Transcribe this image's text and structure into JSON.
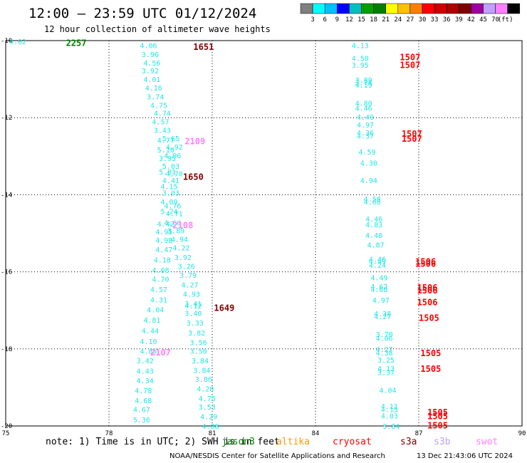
{
  "header": {
    "title": "12:00 — 23:59 UTC 01/12/2024",
    "subtitle": "12 hour collection of altimeter wave heights"
  },
  "legend": {
    "colors": [
      "#808080",
      "#00ffff",
      "#00bfff",
      "#0000ff",
      "#00c0c0",
      "#00a000",
      "#008000",
      "#ffff00",
      "#ffc000",
      "#ff8000",
      "#ff0000",
      "#d00000",
      "#b00000",
      "#800000",
      "#a000a0",
      "#c0a0ff",
      "#ff80ff",
      "#000000"
    ],
    "labels": [
      "3",
      "6",
      "9",
      "12",
      "15",
      "18",
      "21",
      "24",
      "27",
      "30",
      "33",
      "36",
      "39",
      "42",
      "45",
      "70",
      "(ft)"
    ],
    "unit": "(ft)"
  },
  "chart_data": {
    "type": "scatter",
    "title": "12:00 — 23:59 UTC 01/12/2024",
    "subtitle": "12 hour collection of altimeter wave heights",
    "xlim": [
      75,
      90
    ],
    "ylim": [
      -20,
      -10
    ],
    "x_ticks": [
      "75",
      "78",
      "81",
      "84",
      "87",
      "90"
    ],
    "y_ticks": [
      "-10",
      "-12",
      "-14",
      "-16",
      "-18",
      "-20"
    ],
    "grid": true,
    "wave_color": "#22e6e6",
    "wave_heights": [
      {
        "lon": 75.1,
        "lat": -10.02,
        "v": "4.02"
      },
      {
        "lon": 78.9,
        "lat": -10.12,
        "v": "4.06"
      },
      {
        "lon": 78.95,
        "lat": -10.35,
        "v": "3.96"
      },
      {
        "lon": 79.0,
        "lat": -10.57,
        "v": "4.56"
      },
      {
        "lon": 78.95,
        "lat": -10.78,
        "v": "3.92"
      },
      {
        "lon": 79.0,
        "lat": -11.0,
        "v": "4.01"
      },
      {
        "lon": 79.05,
        "lat": -11.22,
        "v": "4.16"
      },
      {
        "lon": 79.1,
        "lat": -11.45,
        "v": "3.74"
      },
      {
        "lon": 79.2,
        "lat": -11.67,
        "v": "4.75"
      },
      {
        "lon": 79.3,
        "lat": -11.88,
        "v": "4.74"
      },
      {
        "lon": 79.25,
        "lat": -12.1,
        "v": "4.57"
      },
      {
        "lon": 79.3,
        "lat": -12.32,
        "v": "3.43"
      },
      {
        "lon": 79.55,
        "lat": -12.53,
        "v": "5.65"
      },
      {
        "lon": 79.4,
        "lat": -12.58,
        "v": "4.77"
      },
      {
        "lon": 79.65,
        "lat": -12.75,
        "v": "4.92"
      },
      {
        "lon": 79.4,
        "lat": -12.83,
        "v": "5.10"
      },
      {
        "lon": 79.6,
        "lat": -12.98,
        "v": "4.96"
      },
      {
        "lon": 79.45,
        "lat": -13.05,
        "v": "3.95"
      },
      {
        "lon": 79.55,
        "lat": -13.25,
        "v": "5.03"
      },
      {
        "lon": 79.45,
        "lat": -13.4,
        "v": "5.01"
      },
      {
        "lon": 79.65,
        "lat": -13.45,
        "v": "4.70"
      },
      {
        "lon": 79.55,
        "lat": -13.62,
        "v": "4.41"
      },
      {
        "lon": 79.5,
        "lat": -13.78,
        "v": "4.15"
      },
      {
        "lon": 79.55,
        "lat": -13.95,
        "v": "3.03"
      },
      {
        "lon": 79.5,
        "lat": -14.18,
        "v": "4.09"
      },
      {
        "lon": 79.6,
        "lat": -14.28,
        "v": "4.76"
      },
      {
        "lon": 79.5,
        "lat": -14.43,
        "v": "5.24"
      },
      {
        "lon": 79.65,
        "lat": -14.48,
        "v": "4.71"
      },
      {
        "lon": 79.4,
        "lat": -14.75,
        "v": "4.42"
      },
      {
        "lon": 79.6,
        "lat": -14.72,
        "v": "4.60"
      },
      {
        "lon": 79.35,
        "lat": -14.95,
        "v": "4.95"
      },
      {
        "lon": 79.7,
        "lat": -14.93,
        "v": "3.89"
      },
      {
        "lon": 79.35,
        "lat": -15.18,
        "v": "4.98"
      },
      {
        "lon": 79.8,
        "lat": -15.15,
        "v": "4.94"
      },
      {
        "lon": 79.35,
        "lat": -15.42,
        "v": "4.47"
      },
      {
        "lon": 79.85,
        "lat": -15.37,
        "v": "4.22"
      },
      {
        "lon": 79.9,
        "lat": -15.62,
        "v": "3.92"
      },
      {
        "lon": 79.3,
        "lat": -15.68,
        "v": "4.18"
      },
      {
        "lon": 80.0,
        "lat": -15.85,
        "v": "3.26"
      },
      {
        "lon": 79.25,
        "lat": -15.95,
        "v": "4.08"
      },
      {
        "lon": 80.05,
        "lat": -16.08,
        "v": "3.79"
      },
      {
        "lon": 79.25,
        "lat": -16.18,
        "v": "4.70"
      },
      {
        "lon": 80.1,
        "lat": -16.33,
        "v": "4.27"
      },
      {
        "lon": 79.2,
        "lat": -16.45,
        "v": "4.57"
      },
      {
        "lon": 80.15,
        "lat": -16.57,
        "v": "4.93"
      },
      {
        "lon": 79.2,
        "lat": -16.72,
        "v": "4.31"
      },
      {
        "lon": 80.2,
        "lat": -16.82,
        "v": "3.41"
      },
      {
        "lon": 80.2,
        "lat": -16.88,
        "v": "4.12"
      },
      {
        "lon": 79.1,
        "lat": -16.98,
        "v": "4.04"
      },
      {
        "lon": 80.2,
        "lat": -17.07,
        "v": "3.40"
      },
      {
        "lon": 79.0,
        "lat": -17.25,
        "v": "4.81"
      },
      {
        "lon": 80.25,
        "lat": -17.32,
        "v": "3.33"
      },
      {
        "lon": 78.95,
        "lat": -17.52,
        "v": "4.44"
      },
      {
        "lon": 80.3,
        "lat": -17.58,
        "v": "3.82"
      },
      {
        "lon": 78.9,
        "lat": -17.8,
        "v": "4.10"
      },
      {
        "lon": 80.35,
        "lat": -17.83,
        "v": "3.56"
      },
      {
        "lon": 78.9,
        "lat": -18.05,
        "v": "4.85"
      },
      {
        "lon": 80.35,
        "lat": -18.05,
        "v": "3.50"
      },
      {
        "lon": 78.8,
        "lat": -18.3,
        "v": "3.42"
      },
      {
        "lon": 80.4,
        "lat": -18.3,
        "v": "3.84"
      },
      {
        "lon": 78.8,
        "lat": -18.57,
        "v": "4.43"
      },
      {
        "lon": 80.45,
        "lat": -18.55,
        "v": "3.84"
      },
      {
        "lon": 78.8,
        "lat": -18.82,
        "v": "4.34"
      },
      {
        "lon": 80.5,
        "lat": -18.78,
        "v": "3.86"
      },
      {
        "lon": 78.75,
        "lat": -19.08,
        "v": "4.78"
      },
      {
        "lon": 80.55,
        "lat": -19.03,
        "v": "4.20"
      },
      {
        "lon": 78.75,
        "lat": -19.33,
        "v": "4.68"
      },
      {
        "lon": 80.6,
        "lat": -19.28,
        "v": "4.75"
      },
      {
        "lon": 78.7,
        "lat": -19.57,
        "v": "4.67"
      },
      {
        "lon": 80.6,
        "lat": -19.5,
        "v": "3.53"
      },
      {
        "lon": 78.7,
        "lat": -19.83,
        "v": "5.36"
      },
      {
        "lon": 80.65,
        "lat": -19.75,
        "v": "4.29"
      },
      {
        "lon": 80.7,
        "lat": -20.0,
        "v": "4.08"
      },
      {
        "lon": 85.05,
        "lat": -10.12,
        "v": "4.13"
      },
      {
        "lon": 85.05,
        "lat": -10.45,
        "v": "4.50"
      },
      {
        "lon": 85.05,
        "lat": -10.63,
        "v": "3.95"
      },
      {
        "lon": 85.15,
        "lat": -11.02,
        "v": "3.80"
      },
      {
        "lon": 85.15,
        "lat": -11.08,
        "v": "3.74"
      },
      {
        "lon": 85.15,
        "lat": -11.15,
        "v": "4.19"
      },
      {
        "lon": 85.15,
        "lat": -11.62,
        "v": "4.80"
      },
      {
        "lon": 85.15,
        "lat": -11.75,
        "v": "4.46"
      },
      {
        "lon": 85.2,
        "lat": -11.98,
        "v": "4.49"
      },
      {
        "lon": 85.2,
        "lat": -12.18,
        "v": "4.97"
      },
      {
        "lon": 85.2,
        "lat": -12.38,
        "v": "4.36"
      },
      {
        "lon": 85.2,
        "lat": -12.47,
        "v": "4.37"
      },
      {
        "lon": 85.25,
        "lat": -12.88,
        "v": "4.59"
      },
      {
        "lon": 85.3,
        "lat": -13.17,
        "v": "4.30"
      },
      {
        "lon": 85.3,
        "lat": -13.62,
        "v": "4.94"
      },
      {
        "lon": 85.4,
        "lat": -14.1,
        "v": "4.58"
      },
      {
        "lon": 85.4,
        "lat": -14.18,
        "v": "4.68"
      },
      {
        "lon": 85.45,
        "lat": -14.62,
        "v": "4.46"
      },
      {
        "lon": 85.45,
        "lat": -14.77,
        "v": "4.83"
      },
      {
        "lon": 85.45,
        "lat": -15.05,
        "v": "4.40"
      },
      {
        "lon": 85.5,
        "lat": -15.3,
        "v": "4.87"
      },
      {
        "lon": 85.55,
        "lat": -15.67,
        "v": "4.46"
      },
      {
        "lon": 85.55,
        "lat": -15.72,
        "v": "4.49"
      },
      {
        "lon": 85.55,
        "lat": -15.82,
        "v": "4.24"
      },
      {
        "lon": 85.6,
        "lat": -16.15,
        "v": "4.49"
      },
      {
        "lon": 85.6,
        "lat": -16.38,
        "v": "4.62"
      },
      {
        "lon": 85.6,
        "lat": -16.45,
        "v": "4.68"
      },
      {
        "lon": 85.65,
        "lat": -16.73,
        "v": "4.97"
      },
      {
        "lon": 85.7,
        "lat": -17.08,
        "v": "4.38"
      },
      {
        "lon": 85.7,
        "lat": -17.15,
        "v": "4.27"
      },
      {
        "lon": 85.75,
        "lat": -17.62,
        "v": "3.70"
      },
      {
        "lon": 85.75,
        "lat": -17.72,
        "v": "4.06"
      },
      {
        "lon": 85.75,
        "lat": -18.0,
        "v": "4.27"
      },
      {
        "lon": 85.75,
        "lat": -18.1,
        "v": "4.38"
      },
      {
        "lon": 85.8,
        "lat": -18.28,
        "v": "3.25"
      },
      {
        "lon": 85.8,
        "lat": -18.5,
        "v": "4.13"
      },
      {
        "lon": 85.8,
        "lat": -18.6,
        "v": "3.37"
      },
      {
        "lon": 85.85,
        "lat": -19.07,
        "v": "4.04"
      },
      {
        "lon": 85.9,
        "lat": -19.48,
        "v": "4.11"
      },
      {
        "lon": 85.9,
        "lat": -19.57,
        "v": "4.15"
      },
      {
        "lon": 85.9,
        "lat": -19.73,
        "v": "4.03"
      },
      {
        "lon": 85.95,
        "lat": -20.0,
        "v": "3.84"
      }
    ],
    "time_labels": [
      {
        "lon": 76.75,
        "lat": -10.05,
        "text": "2257",
        "color": "#008000"
      },
      {
        "lon": 80.45,
        "lat": -10.15,
        "text": "1651",
        "color": "#800000"
      },
      {
        "lon": 80.2,
        "lat": -12.6,
        "text": "2109",
        "color": "#ff80ff"
      },
      {
        "lon": 80.15,
        "lat": -13.52,
        "text": "1650",
        "color": "#800000"
      },
      {
        "lon": 79.85,
        "lat": -14.78,
        "text": "2108",
        "color": "#ff80ff"
      },
      {
        "lon": 81.05,
        "lat": -16.92,
        "text": "1649",
        "color": "#800000"
      },
      {
        "lon": 79.2,
        "lat": -18.08,
        "text": "2107",
        "color": "#ff80ff"
      },
      {
        "lon": 86.45,
        "lat": -10.42,
        "text": "1507",
        "color": "#ff0000"
      },
      {
        "lon": 86.45,
        "lat": -10.62,
        "text": "1507",
        "color": "#ff0000"
      },
      {
        "lon": 86.5,
        "lat": -12.4,
        "text": "1507",
        "color": "#ff0000"
      },
      {
        "lon": 86.5,
        "lat": -12.53,
        "text": "1507",
        "color": "#ff0000"
      },
      {
        "lon": 86.9,
        "lat": -15.72,
        "text": "1506",
        "color": "#ff0000"
      },
      {
        "lon": 86.9,
        "lat": -15.78,
        "text": "1506",
        "color": "#ff0000"
      },
      {
        "lon": 86.95,
        "lat": -16.4,
        "text": "1506",
        "color": "#ff0000"
      },
      {
        "lon": 86.95,
        "lat": -16.47,
        "text": "1506",
        "color": "#ff0000"
      },
      {
        "lon": 86.95,
        "lat": -16.77,
        "text": "1506",
        "color": "#ff0000"
      },
      {
        "lon": 87.0,
        "lat": -17.18,
        "text": "1505",
        "color": "#ff0000"
      },
      {
        "lon": 87.05,
        "lat": -18.1,
        "text": "1505",
        "color": "#ff0000"
      },
      {
        "lon": 87.05,
        "lat": -18.5,
        "text": "1505",
        "color": "#ff0000"
      },
      {
        "lon": 87.25,
        "lat": -19.63,
        "text": "1505",
        "color": "#ff0000"
      },
      {
        "lon": 87.25,
        "lat": -19.73,
        "text": "1505",
        "color": "#ff0000"
      },
      {
        "lon": 87.25,
        "lat": -19.97,
        "text": "1505",
        "color": "#ff0000"
      }
    ]
  },
  "note": {
    "text": "note: 1) Time is in UTC; 2) SWH is in feet",
    "satellites": [
      {
        "name": "jason3",
        "color": "#008000"
      },
      {
        "name": "altika",
        "color": "#ff9900"
      },
      {
        "name": "cryosat",
        "color": "#ff0000"
      },
      {
        "name": "s3a",
        "color": "#800000"
      },
      {
        "name": "s3b",
        "color": "#c0a0ff"
      },
      {
        "name": "swot",
        "color": "#ff80ff"
      }
    ]
  },
  "footer": {
    "credit": "NOAA/NESDIS Center for Satellite Applications and Research",
    "timestamp": "13 Dec 21:43:06 UTC 2024"
  }
}
